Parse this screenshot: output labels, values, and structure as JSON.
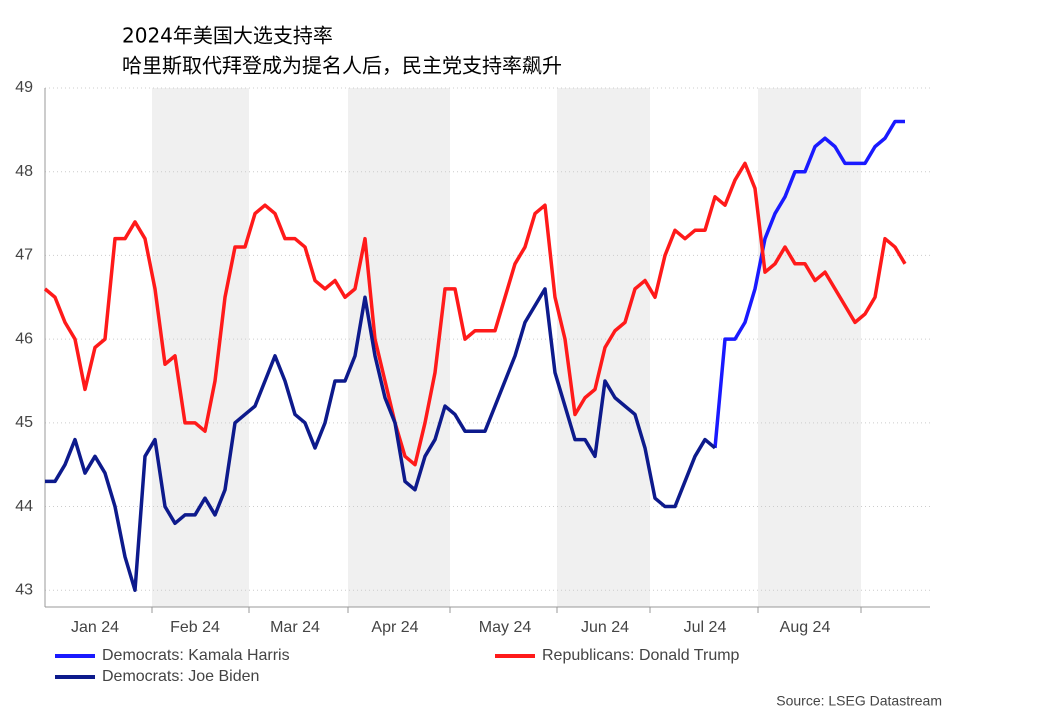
{
  "chart_data": {
    "type": "line",
    "title": "2024年美国大选支持率",
    "subtitle": "哈里斯取代拜登成为提名人后，民主党支持率飙升",
    "source": "Source: LSEG Datastream",
    "categories": [
      null,
      null,
      null,
      null,
      null,
      "Jan 24",
      null,
      null,
      null,
      null,
      null,
      null,
      null,
      null,
      null,
      "Feb 24",
      null,
      null,
      null,
      null,
      null,
      null,
      null,
      null,
      null,
      "Mar 24",
      null,
      null,
      null,
      null,
      null,
      null,
      null,
      null,
      null,
      "Apr 24",
      null,
      null,
      null,
      null,
      null,
      null,
      null,
      null,
      null,
      null,
      "May 24",
      null,
      null,
      null,
      null,
      null,
      null,
      null,
      null,
      null,
      "Jun 24",
      null,
      null,
      null,
      null,
      null,
      null,
      null,
      null,
      null,
      "Jul 24",
      null,
      null,
      null,
      null,
      null,
      null,
      null,
      null,
      null,
      "Aug 24",
      null,
      null,
      null,
      null,
      null,
      null,
      null,
      null,
      null,
      null
    ],
    "series": [
      {
        "name": "Democrats: Kamala Harris",
        "color": "#1a1aff",
        "values": [
          null,
          null,
          null,
          null,
          null,
          null,
          null,
          null,
          null,
          null,
          null,
          null,
          null,
          null,
          null,
          null,
          null,
          null,
          null,
          null,
          null,
          null,
          null,
          null,
          null,
          null,
          null,
          null,
          null,
          null,
          null,
          null,
          null,
          null,
          null,
          null,
          null,
          null,
          null,
          null,
          null,
          null,
          null,
          null,
          null,
          null,
          null,
          null,
          null,
          null,
          null,
          null,
          null,
          null,
          null,
          null,
          null,
          null,
          null,
          null,
          null,
          null,
          null,
          null,
          null,
          null,
          null,
          44.7,
          46.0,
          46.0,
          46.2,
          46.6,
          47.2,
          47.5,
          47.7,
          48.0,
          48.0,
          48.3,
          48.4,
          48.3,
          48.1,
          48.1,
          48.1,
          48.3,
          48.4,
          48.6,
          48.6
        ]
      },
      {
        "name": "Republicans: Donald Trump",
        "color": "#ff1a1a",
        "values": [
          46.6,
          46.5,
          46.2,
          46.0,
          45.4,
          45.9,
          46.0,
          47.2,
          47.2,
          47.4,
          47.2,
          46.6,
          45.7,
          45.8,
          45.0,
          45.0,
          44.9,
          45.5,
          46.5,
          47.1,
          47.1,
          47.5,
          47.6,
          47.5,
          47.2,
          47.2,
          47.1,
          46.7,
          46.6,
          46.7,
          46.5,
          46.6,
          47.2,
          46.0,
          45.5,
          45.0,
          44.6,
          44.5,
          45.0,
          45.6,
          46.6,
          46.6,
          46.0,
          46.1,
          46.1,
          46.1,
          46.5,
          46.9,
          47.1,
          47.5,
          47.6,
          46.5,
          46.0,
          45.1,
          45.3,
          45.4,
          45.9,
          46.1,
          46.2,
          46.6,
          46.7,
          46.5,
          47.0,
          47.3,
          47.2,
          47.3,
          47.3,
          47.7,
          47.6,
          47.9,
          48.1,
          47.8,
          46.8,
          46.9,
          47.1,
          46.9,
          46.9,
          46.7,
          46.8,
          46.6,
          46.4,
          46.2,
          46.3,
          46.5,
          47.2,
          47.1,
          46.9
        ]
      },
      {
        "name": "Democrats: Joe Biden",
        "color": "#0d1a8c",
        "values": [
          44.3,
          44.3,
          44.5,
          44.8,
          44.4,
          44.6,
          44.4,
          44.0,
          43.4,
          43.0,
          44.6,
          44.8,
          44.0,
          43.8,
          43.9,
          43.9,
          44.1,
          43.9,
          44.2,
          45.0,
          45.1,
          45.2,
          45.5,
          45.8,
          45.5,
          45.1,
          45.0,
          44.7,
          45.0,
          45.5,
          45.5,
          45.8,
          46.5,
          45.8,
          45.3,
          45.0,
          44.3,
          44.2,
          44.6,
          44.8,
          45.2,
          45.1,
          44.9,
          44.9,
          44.9,
          45.2,
          45.5,
          45.8,
          46.2,
          46.4,
          46.6,
          45.6,
          45.2,
          44.8,
          44.8,
          44.6,
          45.5,
          45.3,
          45.2,
          45.1,
          44.7,
          44.1,
          44.0,
          44.0,
          44.3,
          44.6,
          44.8,
          44.7,
          null,
          null,
          null,
          null,
          null,
          null,
          null,
          null,
          null,
          null,
          null,
          null,
          null,
          null,
          null,
          null,
          null,
          null,
          null
        ]
      }
    ],
    "ylim": [
      42.8,
      49
    ],
    "yticks": [
      43,
      44,
      45,
      46,
      47,
      48,
      49
    ],
    "grid": true
  }
}
